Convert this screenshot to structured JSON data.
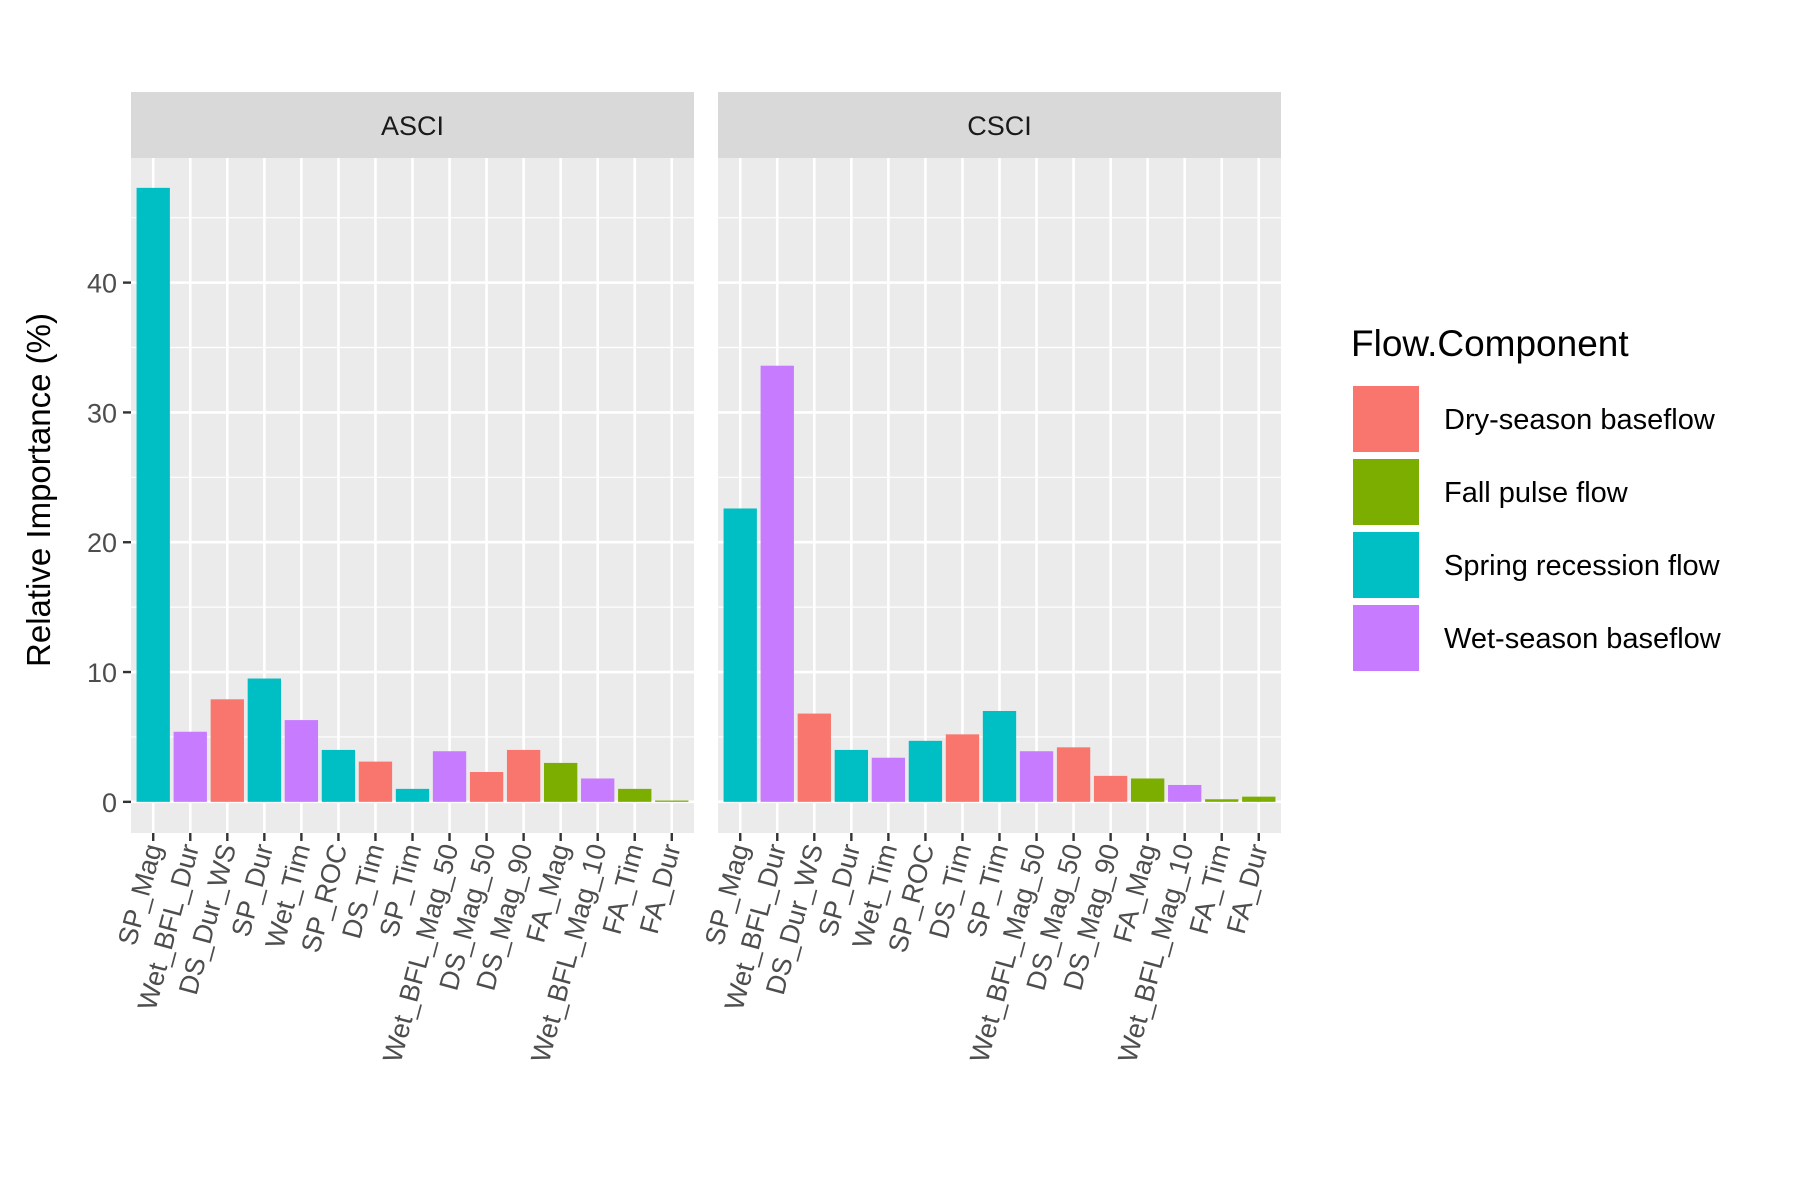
{
  "chart_data": {
    "type": "bar",
    "ylabel": "Relative Importance (%)",
    "xlabel": "",
    "ylim": [
      -2.4,
      49.6
    ],
    "yticks": [
      0,
      10,
      20,
      30,
      40
    ],
    "grid": true,
    "legend": {
      "title": "Flow.Component",
      "placement": "right",
      "entries": [
        {
          "name": "Dry-season baseflow",
          "color": "#F8766D"
        },
        {
          "name": "Fall pulse flow",
          "color": "#7CAE00"
        },
        {
          "name": "Spring recession flow",
          "color": "#00BFC4"
        },
        {
          "name": "Wet-season baseflow",
          "color": "#C77CFF"
        }
      ]
    },
    "panels": [
      {
        "title": "ASCI",
        "categories": [
          "SP_Mag",
          "Wet_BFL_Dur",
          "DS_Dur_WS",
          "SP_Dur",
          "Wet_Tim",
          "SP_ROC",
          "DS_Tim",
          "SP_Tim",
          "Wet_BFL_Mag_50",
          "DS_Mag_50",
          "DS_Mag_90",
          "FA_Mag",
          "Wet_BFL_Mag_10",
          "FA_Tim",
          "FA_Dur"
        ],
        "values": [
          47.3,
          5.4,
          7.9,
          9.5,
          6.3,
          4.0,
          3.1,
          1.0,
          3.9,
          2.3,
          4.0,
          3.0,
          1.8,
          1.0,
          0.1
        ],
        "components": [
          "Spring recession flow",
          "Wet-season baseflow",
          "Dry-season baseflow",
          "Spring recession flow",
          "Wet-season baseflow",
          "Spring recession flow",
          "Dry-season baseflow",
          "Spring recession flow",
          "Wet-season baseflow",
          "Dry-season baseflow",
          "Dry-season baseflow",
          "Fall pulse flow",
          "Wet-season baseflow",
          "Fall pulse flow",
          "Fall pulse flow"
        ]
      },
      {
        "title": "CSCI",
        "categories": [
          "SP_Mag",
          "Wet_BFL_Dur",
          "DS_Dur_WS",
          "SP_Dur",
          "Wet_Tim",
          "SP_ROC",
          "DS_Tim",
          "SP_Tim",
          "Wet_BFL_Mag_50",
          "DS_Mag_50",
          "DS_Mag_90",
          "FA_Mag",
          "Wet_BFL_Mag_10",
          "FA_Tim",
          "FA_Dur"
        ],
        "values": [
          22.6,
          33.6,
          6.8,
          4.0,
          3.4,
          4.7,
          5.2,
          7.0,
          3.9,
          4.2,
          2.0,
          1.8,
          1.3,
          0.2,
          0.4
        ],
        "components": [
          "Spring recession flow",
          "Wet-season baseflow",
          "Dry-season baseflow",
          "Spring recession flow",
          "Wet-season baseflow",
          "Spring recession flow",
          "Dry-season baseflow",
          "Spring recession flow",
          "Wet-season baseflow",
          "Dry-season baseflow",
          "Dry-season baseflow",
          "Fall pulse flow",
          "Wet-season baseflow",
          "Fall pulse flow",
          "Fall pulse flow"
        ]
      }
    ]
  }
}
